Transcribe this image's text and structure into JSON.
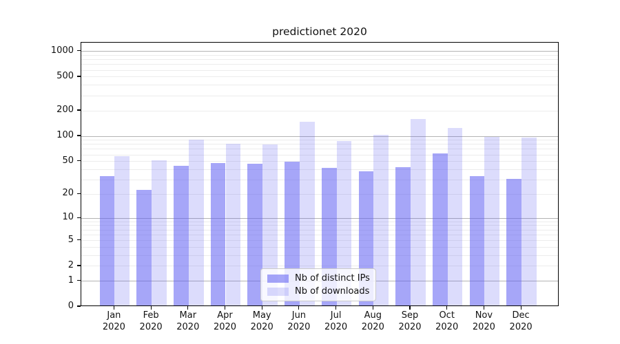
{
  "chart_data": {
    "type": "bar",
    "title": "predictionet 2020",
    "categories": [
      "Jan",
      "Feb",
      "Mar",
      "Apr",
      "May",
      "Jun",
      "Jul",
      "Aug",
      "Sep",
      "Oct",
      "Nov",
      "Dec"
    ],
    "category_year": "2020",
    "series": [
      {
        "name": "Nb of distinct IPs",
        "values": [
          32,
          22,
          43,
          46,
          45,
          48,
          40,
          37,
          41,
          60,
          32,
          30
        ]
      },
      {
        "name": "Nb of downloads",
        "values": [
          56,
          50,
          87,
          79,
          77,
          142,
          85,
          100,
          153,
          120,
          94,
          92
        ]
      }
    ],
    "xlabel": "",
    "ylabel": "",
    "yscale": "log1p",
    "y_ticks": [
      0,
      1,
      2,
      5,
      10,
      20,
      50,
      100,
      200,
      500,
      1000
    ],
    "ylim": [
      0,
      1270
    ],
    "grid": true,
    "legend_position": "lower-center-inside"
  },
  "colors": {
    "bar_distinct_ips": "rgba(92,92,242,0.55)",
    "bar_downloads": "rgba(92,92,242,0.21)",
    "grid_major": "#b3b3b3",
    "grid_minor": "#ececec",
    "axis": "#000000",
    "text": "#111111",
    "legend_border": "#cbcbcb",
    "legend_background": "rgba(255,255,255,0.8)"
  }
}
